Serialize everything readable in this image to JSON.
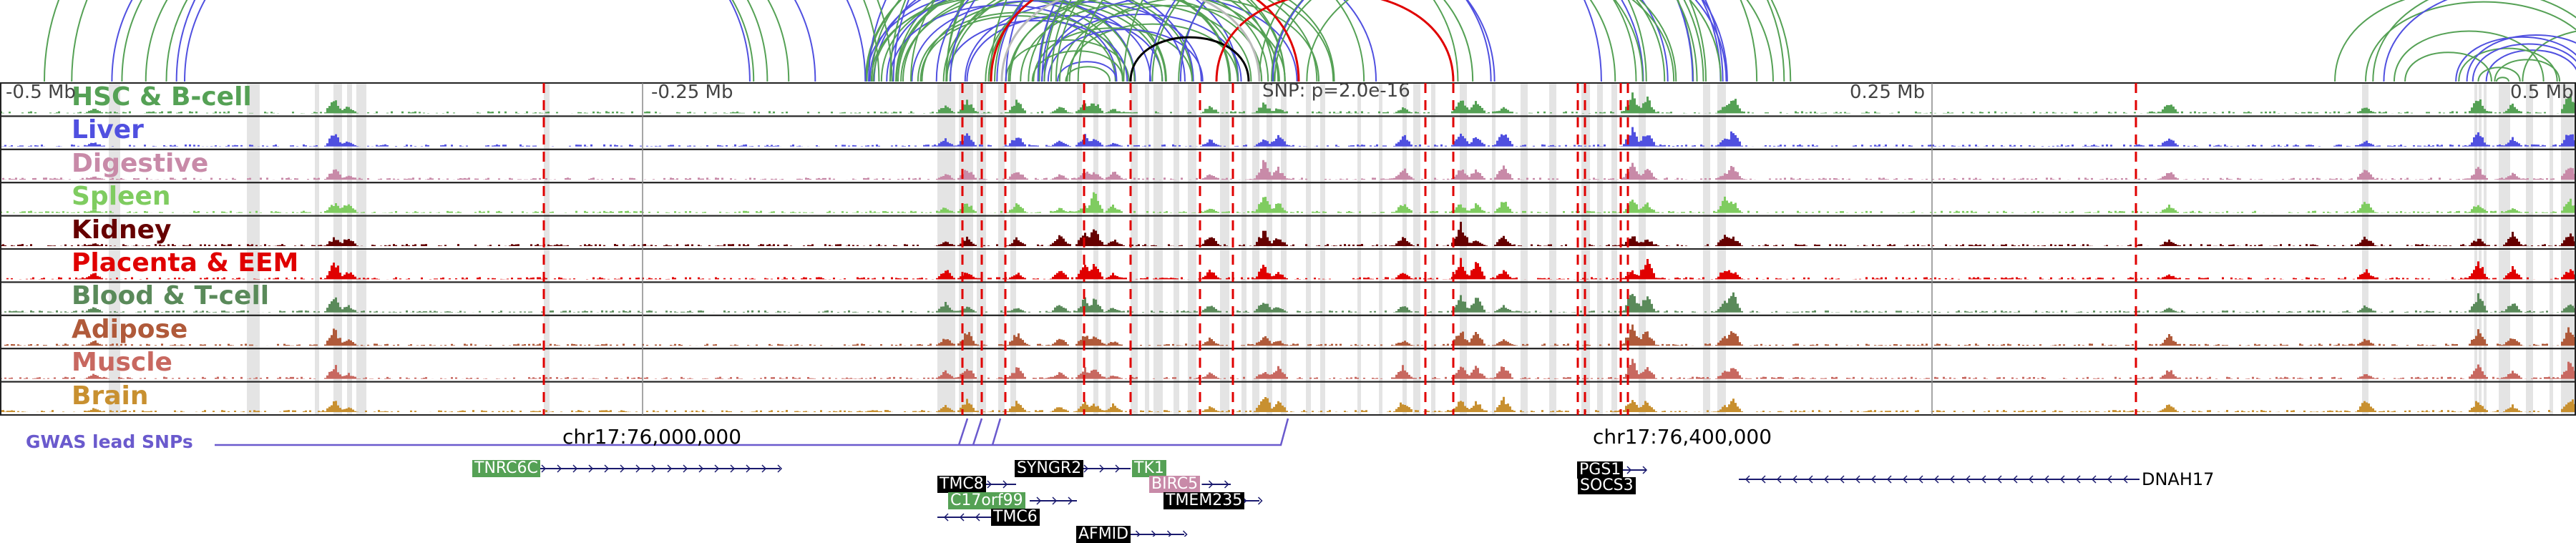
{
  "colors": {
    "arc_green": "#55a155",
    "arc_blue": "#5050e0",
    "arc_red": "#e00000",
    "arc_gray": "#bbbbbb",
    "arc_black": "#000000",
    "snp_line": "#e00000",
    "highlight": "#e4e4e4",
    "gwas": "#6a5acd",
    "gene_line": "#1a1a6e"
  },
  "axis": {
    "left": "-0.5 Mb",
    "left_mid": "-0.25 Mb",
    "center": "SNP: p=2.0e-16",
    "right_mid": "0.25 Mb",
    "right": "0.5 Mb"
  },
  "tracks": [
    {
      "label": "HSC & B-cell",
      "color": "#55a155"
    },
    {
      "label": "Liver",
      "color": "#5050e0"
    },
    {
      "label": "Digestive",
      "color": "#c88aa8"
    },
    {
      "label": "Spleen",
      "color": "#7fcc60"
    },
    {
      "label": "Kidney",
      "color": "#660000"
    },
    {
      "label": "Placenta & EEM",
      "color": "#e00000"
    },
    {
      "label": "Blood & T-cell",
      "color": "#5a8a5a"
    },
    {
      "label": "Adipose",
      "color": "#b05a3a"
    },
    {
      "label": "Muscle",
      "color": "#c86860"
    },
    {
      "label": "Brain",
      "color": "#c89030"
    }
  ],
  "gwas_label": "GWAS lead SNPs",
  "coords": {
    "left": "chr17:76,000,000",
    "right": "chr17:76,400,000"
  },
  "genes": [
    {
      "name": "TNRC6C",
      "color": "#55a155"
    },
    {
      "name": "SYNGR2",
      "color": "#000000"
    },
    {
      "name": "TK1",
      "color": "#55a155"
    },
    {
      "name": "TMC8",
      "color": "#000000"
    },
    {
      "name": "BIRC5",
      "color": "#c88aa8"
    },
    {
      "name": "C17orf99",
      "color": "#55a155"
    },
    {
      "name": "TMEM235",
      "color": "#000000"
    },
    {
      "name": "TMC6",
      "color": "#000000"
    },
    {
      "name": "AFMID",
      "color": "#000000"
    },
    {
      "name": "PGS1",
      "color": "#000000"
    },
    {
      "name": "SOCS3",
      "color": "#000000"
    },
    {
      "name": "DNAH17",
      "color": "none"
    }
  ]
}
